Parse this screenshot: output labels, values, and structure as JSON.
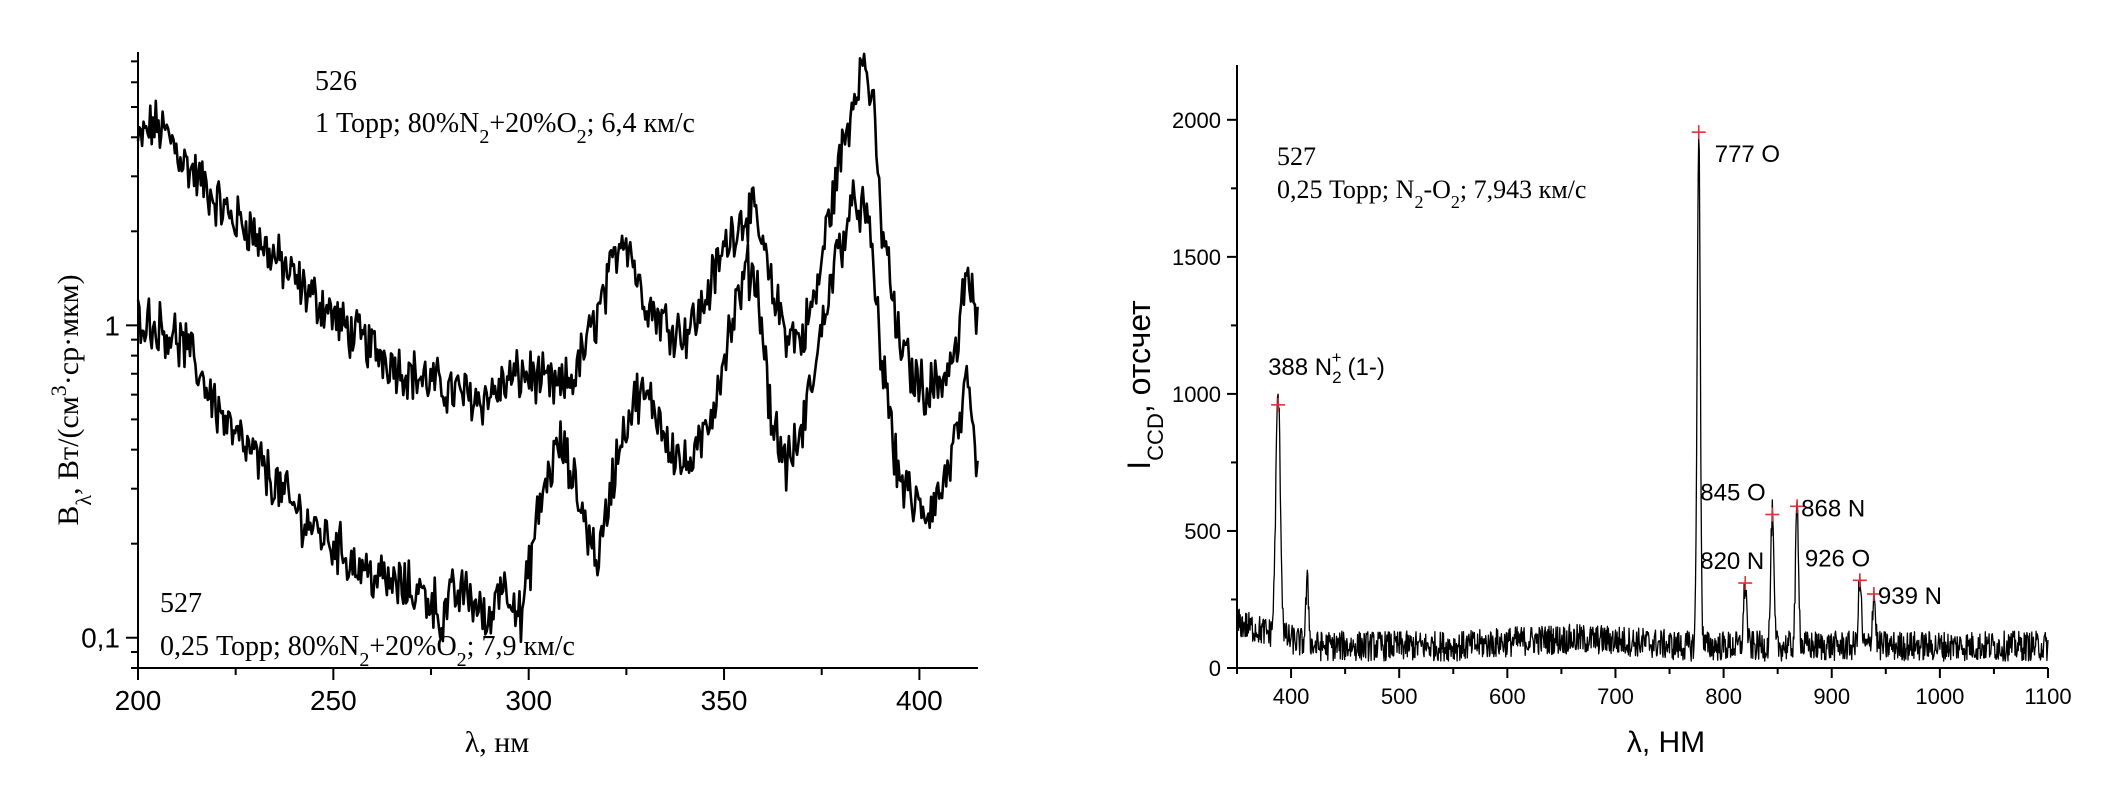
{
  "chart_data": [
    {
      "type": "line",
      "scale_y": "log",
      "xlim": [
        200,
        415
      ],
      "ylim": [
        0.08,
        7.5
      ],
      "x_ticks": [
        200,
        250,
        300,
        350,
        400
      ],
      "x_tick_labels": [
        "200",
        "250",
        "300",
        "350",
        "400"
      ],
      "y_ticks": [
        0.1,
        1
      ],
      "y_tick_labels": [
        "0,1",
        "1"
      ],
      "xlabel": "λ, нм",
      "ylabel": {
        "main": "B",
        "sub": "λ",
        "rest": ", Вт/(см",
        "sup": "3",
        "tail": "·ср·мкм)"
      },
      "annotations": [
        {
          "id": "526",
          "line1": "526",
          "line2_parts": [
            "1 Торр; 80%N",
            "2",
            "+20%O",
            "2",
            "; 6,4 км/с"
          ]
        },
        {
          "id": "527",
          "line1": "527",
          "line2_parts": [
            "0,25 Торр; 80%N",
            "2",
            "+20%O",
            "2",
            "; 7,9 км/с"
          ]
        }
      ],
      "series": [
        {
          "x": [
            200,
            204,
            208,
            212,
            216,
            220,
            224,
            228,
            232,
            236,
            240,
            244,
            248,
            252,
            256,
            260,
            264,
            268,
            272,
            276,
            280,
            284,
            288,
            292,
            296,
            300,
            304,
            308,
            312,
            316,
            320,
            324,
            326,
            328,
            332,
            336,
            340,
            344,
            348,
            352,
            356,
            358,
            362,
            366,
            370,
            374,
            378,
            382,
            384,
            386,
            388,
            390,
            394,
            398,
            402,
            406,
            410,
            412,
            415
          ],
          "y": [
            3.8,
            4.4,
            4.0,
            3.3,
            2.9,
            2.5,
            2.2,
            2.1,
            1.8,
            1.6,
            1.4,
            1.25,
            1.15,
            1.0,
            0.92,
            0.85,
            0.78,
            0.72,
            0.68,
            0.65,
            0.62,
            0.6,
            0.58,
            0.62,
            0.68,
            0.7,
            0.65,
            0.62,
            0.7,
            0.95,
            1.3,
            2.0,
            1.8,
            1.35,
            1.1,
            1.0,
            0.95,
            1.1,
            1.5,
            2.0,
            2.3,
            2.2,
            1.3,
            0.95,
            0.9,
            1.3,
            2.6,
            4.5,
            6.2,
            7.0,
            5.0,
            2.2,
            0.95,
            0.7,
            0.62,
            0.68,
            0.85,
            1.5,
            0.95
          ]
        },
        {
          "x": [
            200,
            204,
            208,
            212,
            216,
            220,
            224,
            228,
            232,
            236,
            240,
            244,
            248,
            252,
            256,
            260,
            264,
            268,
            272,
            276,
            278,
            280,
            284,
            288,
            290,
            292,
            296,
            298,
            300,
            304,
            308,
            312,
            316,
            318,
            320,
            324,
            328,
            332,
            336,
            340,
            344,
            348,
            352,
            356,
            358,
            360,
            362,
            366,
            370,
            374,
            378,
            382,
            384,
            386,
            388,
            390,
            394,
            398,
            402,
            406,
            410,
            412,
            415
          ],
          "y": [
            1.1,
            1.0,
            0.95,
            0.85,
            0.7,
            0.55,
            0.45,
            0.4,
            0.35,
            0.3,
            0.26,
            0.23,
            0.21,
            0.19,
            0.17,
            0.16,
            0.15,
            0.145,
            0.14,
            0.13,
            0.11,
            0.135,
            0.14,
            0.12,
            0.105,
            0.15,
            0.14,
            0.11,
            0.16,
            0.3,
            0.42,
            0.3,
            0.2,
            0.18,
            0.25,
            0.45,
            0.6,
            0.55,
            0.42,
            0.35,
            0.4,
            0.6,
            1.0,
            1.5,
            1.45,
            0.9,
            0.5,
            0.35,
            0.45,
            0.8,
            1.5,
            2.2,
            2.5,
            2.3,
            1.6,
            0.8,
            0.35,
            0.27,
            0.25,
            0.3,
            0.45,
            0.62,
            0.32
          ]
        }
      ]
    },
    {
      "type": "line",
      "xlim": [
        350,
        1100
      ],
      "ylim": [
        0,
        2200
      ],
      "x_ticks": [
        400,
        500,
        600,
        700,
        800,
        900,
        1000,
        1100
      ],
      "x_tick_labels": [
        "400",
        "500",
        "600",
        "700",
        "800",
        "900",
        "1000",
        "1100"
      ],
      "y_ticks": [
        0,
        500,
        1000,
        1500,
        2000
      ],
      "y_tick_labels": [
        "0",
        "500",
        "1000",
        "1500",
        "2000"
      ],
      "xlabel": "λ, НМ",
      "ylabel": {
        "main": "I",
        "sub": "CCD",
        "rest": ", отсчет"
      },
      "annotation": {
        "line1": "527",
        "line2_parts": [
          "0,25 Торр; N",
          "2",
          "-O",
          "2",
          "; 7,943 км/с"
        ]
      },
      "baseline": 80,
      "peaks": [
        {
          "x": 388,
          "y": 960,
          "width": 3,
          "label_main": "388 N",
          "label_sub": "2",
          "label_sup": "+",
          "label_tail": "(1-)"
        },
        {
          "x": 777,
          "y": 1955,
          "width": 2,
          "label_main": "777 O"
        },
        {
          "x": 820,
          "y": 310,
          "width": 2,
          "label_main": "820 N"
        },
        {
          "x": 845,
          "y": 560,
          "width": 2,
          "label_main": "845 O"
        },
        {
          "x": 868,
          "y": 590,
          "width": 2,
          "label_main": "868 N"
        },
        {
          "x": 926,
          "y": 320,
          "width": 2,
          "label_main": "926 O"
        },
        {
          "x": 939,
          "y": 270,
          "width": 2,
          "label_main": "939 N"
        }
      ],
      "extra_peaks": [
        {
          "x": 415,
          "y": 300,
          "width": 2
        }
      ],
      "marker_color": "#e0303a"
    }
  ]
}
